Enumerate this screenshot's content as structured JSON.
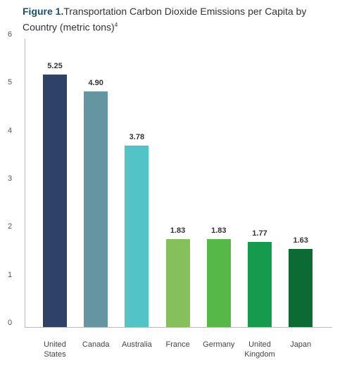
{
  "chart_data": {
    "type": "bar",
    "title_label": "Figure 1.",
    "title": "Transportation Carbon Dioxide Emissions per Capita by Country (metric tons)",
    "title_note": "4",
    "categories": [
      "United States",
      "Canada",
      "Australia",
      "France",
      "Germany",
      "United Kingdom",
      "Japan"
    ],
    "values": [
      5.25,
      4.9,
      3.78,
      1.83,
      1.83,
      1.77,
      1.63
    ],
    "value_labels": [
      "5.25",
      "4.90",
      "3.78",
      "1.83",
      "1.83",
      "1.77",
      "1.63"
    ],
    "colors": [
      "#2e4267",
      "#6695a2",
      "#52c4c8",
      "#86c05a",
      "#56b947",
      "#169a4d",
      "#0b6b33"
    ],
    "ylim": [
      0,
      6
    ],
    "yticks": [
      0,
      1,
      2,
      3,
      4,
      5,
      6
    ],
    "grid": false
  }
}
